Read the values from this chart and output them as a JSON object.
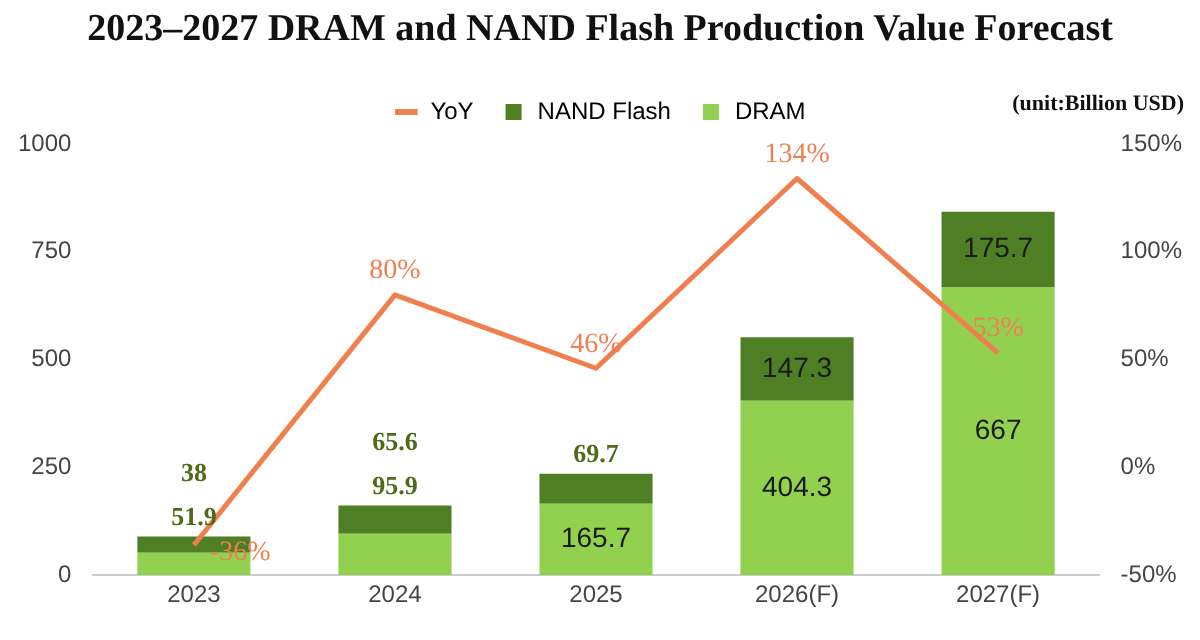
{
  "chart_data": {
    "type": "bar",
    "title": "2023–2027 DRAM and NAND Flash Production Value Forecast",
    "annotations": [
      "(unit:Billion USD)"
    ],
    "categories": [
      "2023",
      "2024",
      "2025",
      "2026(F)",
      "2027(F)"
    ],
    "stacked": true,
    "legend": "top",
    "series": [
      {
        "name": "DRAM",
        "color": "#92d050",
        "values": [
          51.9,
          95.9,
          165.7,
          404.3,
          667
        ],
        "value_labels": [
          "51.9",
          "95.9",
          "165.7",
          "404.3",
          "667"
        ]
      },
      {
        "name": "NAND Flash",
        "color": "#4f7f24",
        "values": [
          38,
          65.6,
          69.7,
          147.3,
          175.7
        ],
        "value_labels": [
          "38",
          "65.6",
          "69.7",
          "147.3",
          "175.7"
        ]
      },
      {
        "name": "YoY",
        "type": "line",
        "axis": "y2",
        "color": "#f07f4f",
        "marker": "none",
        "values": [
          -36,
          80,
          46,
          134,
          53
        ],
        "value_labels": [
          "-36%",
          "80%",
          "46%",
          "134%",
          "53%"
        ]
      }
    ],
    "ylim": [
      0,
      1000
    ],
    "yticks": [
      0,
      250,
      500,
      750,
      1000
    ],
    "y2lim": [
      -50,
      150
    ],
    "y2ticks": [
      {
        "value": -50,
        "label": "-50%"
      },
      {
        "value": 0,
        "label": "0%"
      },
      {
        "value": 50,
        "label": "50%"
      },
      {
        "value": 100,
        "label": "100%"
      },
      {
        "value": 150,
        "label": "150%"
      }
    ]
  }
}
